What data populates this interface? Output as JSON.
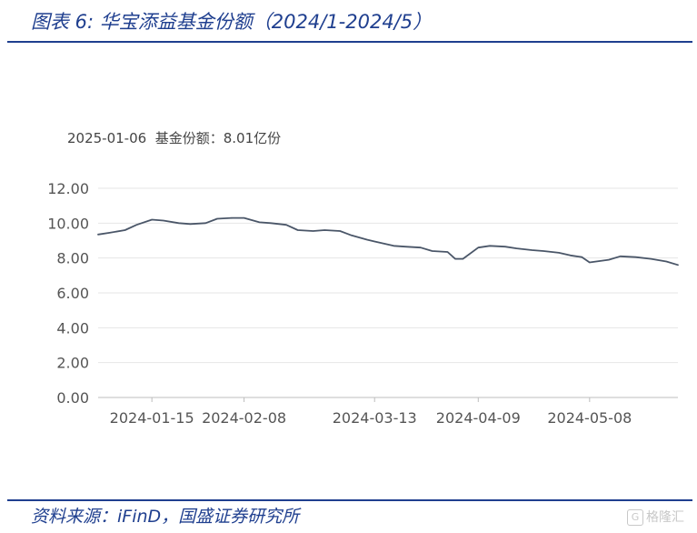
{
  "figure": {
    "title": "图表 6:  华宝添益基金份额（2024/1-2024/5）",
    "source": "资料来源：iFinD，国盛证券研究所",
    "watermark": "格隆汇",
    "watermark_badge": "G"
  },
  "tooltip": {
    "date": "2025-01-06",
    "label": "基金份额：8.01亿份"
  },
  "chart_data": {
    "type": "line",
    "title": "",
    "xlabel": "",
    "ylabel": "",
    "ylim": [
      0,
      12
    ],
    "y_ticks": [
      "0.00",
      "2.00",
      "4.00",
      "6.00",
      "8.00",
      "10.00",
      "12.00"
    ],
    "x_tick_labels": [
      "2024-01-15",
      "2024-02-08",
      "2024-03-13",
      "2024-04-09",
      "2024-05-08"
    ],
    "grid": true,
    "line_color": "#4a5668",
    "series": [
      {
        "x": [
          "2024-01-01",
          "2024-01-04",
          "2024-01-08",
          "2024-01-11",
          "2024-01-15",
          "2024-01-18",
          "2024-01-22",
          "2024-01-25",
          "2024-01-29",
          "2024-02-01",
          "2024-02-05",
          "2024-02-08",
          "2024-02-12",
          "2024-02-15",
          "2024-02-19",
          "2024-02-22",
          "2024-02-26",
          "2024-02-29",
          "2024-03-04",
          "2024-03-07",
          "2024-03-11",
          "2024-03-13",
          "2024-03-18",
          "2024-03-21",
          "2024-03-25",
          "2024-03-28",
          "2024-04-01",
          "2024-04-03",
          "2024-04-05",
          "2024-04-09",
          "2024-04-12",
          "2024-04-16",
          "2024-04-19",
          "2024-04-23",
          "2024-04-26",
          "2024-04-30",
          "2024-05-03",
          "2024-05-06",
          "2024-05-08",
          "2024-05-13",
          "2024-05-16",
          "2024-05-20",
          "2024-05-24",
          "2024-05-28",
          "2024-05-31"
        ],
        "values": [
          9.35,
          9.45,
          9.6,
          9.9,
          10.2,
          10.15,
          10.0,
          9.95,
          10.0,
          10.25,
          10.3,
          10.3,
          10.05,
          10.0,
          9.9,
          9.6,
          9.55,
          9.6,
          9.55,
          9.3,
          9.05,
          8.95,
          8.7,
          8.65,
          8.6,
          8.4,
          8.35,
          7.95,
          7.95,
          8.6,
          8.7,
          8.65,
          8.55,
          8.45,
          8.4,
          8.3,
          8.15,
          8.05,
          7.75,
          7.9,
          8.1,
          8.05,
          7.95,
          7.8,
          7.6
        ]
      }
    ]
  }
}
